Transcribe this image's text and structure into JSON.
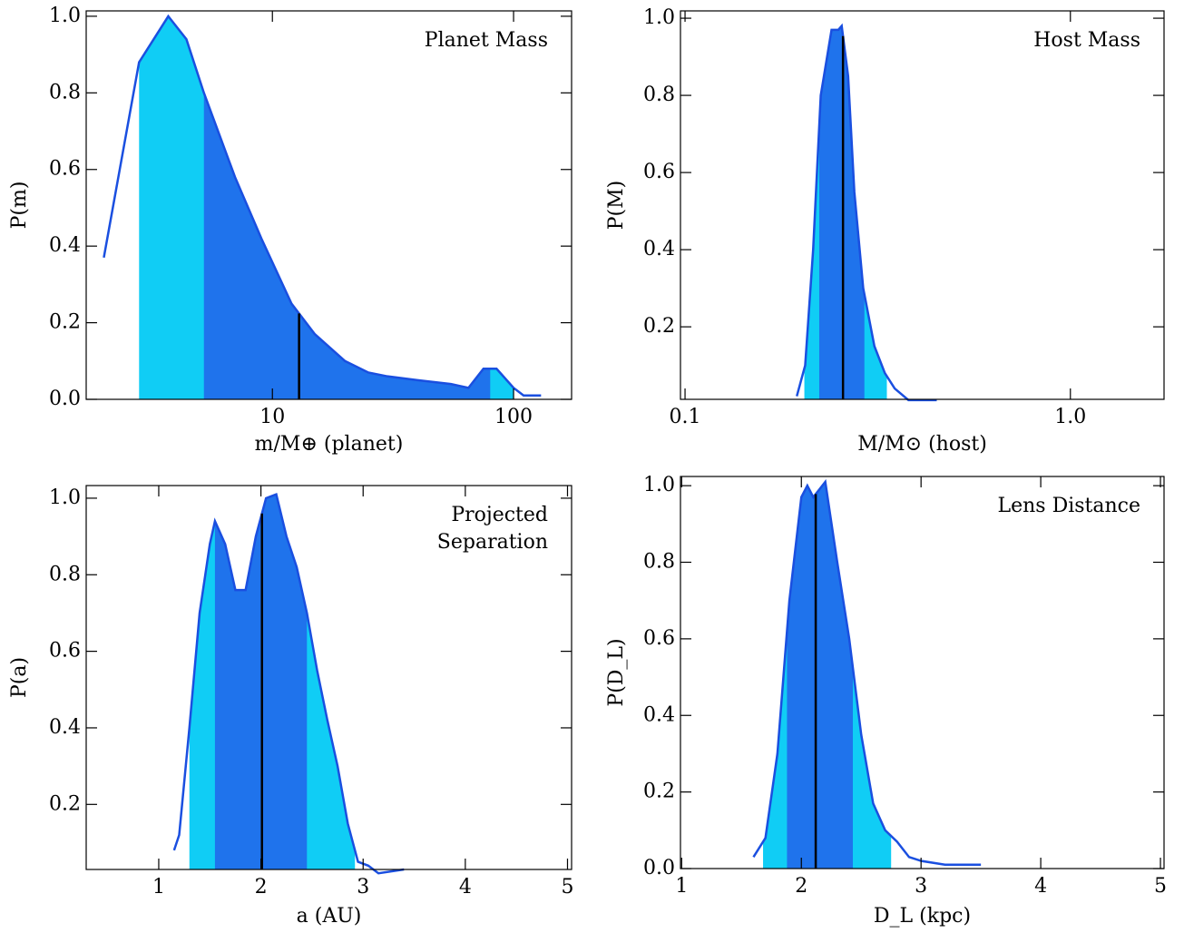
{
  "chart_data": [
    {
      "type": "area",
      "title": [
        "Planet Mass"
      ],
      "xlabel": "m/M⊕ (planet)",
      "ylabel": "P(m)",
      "xlog": true,
      "xlim": [
        1.69,
        174
      ],
      "ylim": [
        0,
        1.014
      ],
      "xticks": [
        10,
        100
      ],
      "yticks": [
        {
          "value": 0,
          "label": "0.0"
        },
        0.2,
        0.4,
        0.6,
        0.8,
        {
          "value": 1,
          "label": "1.0"
        }
      ],
      "x": [
        2.0,
        2.8,
        3.7,
        4.4,
        5.2,
        7,
        9,
        12,
        15,
        20,
        25,
        30,
        40,
        55,
        65,
        75,
        85,
        100,
        110,
        130
      ],
      "values": [
        0.37,
        0.88,
        1.0,
        0.94,
        0.8,
        0.58,
        0.42,
        0.25,
        0.17,
        0.1,
        0.07,
        0.06,
        0.05,
        0.04,
        0.03,
        0.08,
        0.08,
        0.03,
        0.01,
        0.01
      ],
      "intervals": [
        {
          "low": 2.8,
          "high": 100,
          "color": "#10cdf5"
        },
        {
          "low": 5.2,
          "high": 80,
          "color": "#1f73ec"
        }
      ],
      "median": 12.9,
      "color": "#1a4fe0",
      "median_color": "#000000"
    },
    {
      "type": "area",
      "title": [
        "Host Mass"
      ],
      "xlabel": "M/M⊙ (host)",
      "ylabel": "P(M)",
      "xlog": true,
      "xlim": [
        0.0973,
        1.75
      ],
      "ylim": [
        0.012,
        1.019
      ],
      "xticks": [
        0.1,
        {
          "value": 1,
          "label": "1.0"
        }
      ],
      "yticks": [
        0.2,
        0.4,
        0.6,
        0.8,
        {
          "value": 1,
          "label": "1.0"
        }
      ],
      "x": [
        0.195,
        0.205,
        0.215,
        0.225,
        0.24,
        0.25,
        0.255,
        0.265,
        0.275,
        0.29,
        0.31,
        0.33,
        0.35,
        0.38,
        0.45
      ],
      "values": [
        0.02,
        0.1,
        0.4,
        0.8,
        0.97,
        0.97,
        0.98,
        0.85,
        0.55,
        0.3,
        0.15,
        0.08,
        0.04,
        0.01,
        0.01
      ],
      "intervals": [
        {
          "low": 0.204,
          "high": 0.334,
          "color": "#10cdf5"
        },
        {
          "low": 0.223,
          "high": 0.292,
          "color": "#1f73ec"
        }
      ],
      "median": 0.257,
      "color": "#1a4fe0",
      "median_color": "#000000"
    },
    {
      "type": "area",
      "title": [
        "Projected",
        "Separation"
      ],
      "xlabel": "a (AU)",
      "ylabel": "P(a)",
      "xlog": false,
      "xlim": [
        0.29,
        5.04
      ],
      "ylim": [
        0.03,
        1.033
      ],
      "xticks": [
        1,
        2,
        3,
        4,
        5
      ],
      "yticks": [
        0.2,
        0.4,
        0.6,
        0.8,
        {
          "value": 1,
          "label": "1.0"
        }
      ],
      "x": [
        1.15,
        1.2,
        1.3,
        1.4,
        1.5,
        1.55,
        1.65,
        1.75,
        1.85,
        1.95,
        2.05,
        2.15,
        2.25,
        2.35,
        2.45,
        2.55,
        2.65,
        2.75,
        2.85,
        2.95,
        3.05,
        3.15,
        3.4
      ],
      "values": [
        0.08,
        0.12,
        0.4,
        0.7,
        0.88,
        0.94,
        0.88,
        0.76,
        0.76,
        0.9,
        1.0,
        1.01,
        0.9,
        0.82,
        0.7,
        0.55,
        0.42,
        0.3,
        0.15,
        0.05,
        0.04,
        0.02,
        0.03
      ],
      "intervals": [
        {
          "low": 1.3,
          "high": 2.92,
          "color": "#10cdf5"
        },
        {
          "low": 1.55,
          "high": 2.45,
          "color": "#1f73ec"
        }
      ],
      "median": 2.01,
      "color": "#1a4fe0",
      "median_color": "#000000"
    },
    {
      "type": "area",
      "title": [
        "Lens Distance"
      ],
      "xlabel": "D_L (kpc)",
      "ylabel": "P(D_L)",
      "xlog": false,
      "xlim": [
        0.99,
        5.03
      ],
      "ylim": [
        0,
        1.024
      ],
      "xticks": [
        1,
        2,
        3,
        4,
        5
      ],
      "yticks": [
        {
          "value": 0,
          "label": "0.0"
        },
        0.2,
        0.4,
        0.6,
        0.8,
        {
          "value": 1,
          "label": "1.0"
        }
      ],
      "x": [
        1.6,
        1.7,
        1.8,
        1.9,
        2.0,
        2.05,
        2.1,
        2.2,
        2.3,
        2.4,
        2.5,
        2.6,
        2.7,
        2.8,
        2.9,
        3.0,
        3.2,
        3.5
      ],
      "values": [
        0.03,
        0.08,
        0.3,
        0.7,
        0.97,
        1.0,
        0.97,
        1.01,
        0.8,
        0.6,
        0.35,
        0.17,
        0.1,
        0.07,
        0.03,
        0.02,
        0.01,
        0.01
      ],
      "intervals": [
        {
          "low": 1.68,
          "high": 2.75,
          "color": "#10cdf5"
        },
        {
          "low": 1.88,
          "high": 2.43,
          "color": "#1f73ec"
        }
      ],
      "median": 2.12,
      "color": "#1a4fe0",
      "median_color": "#000000"
    }
  ]
}
